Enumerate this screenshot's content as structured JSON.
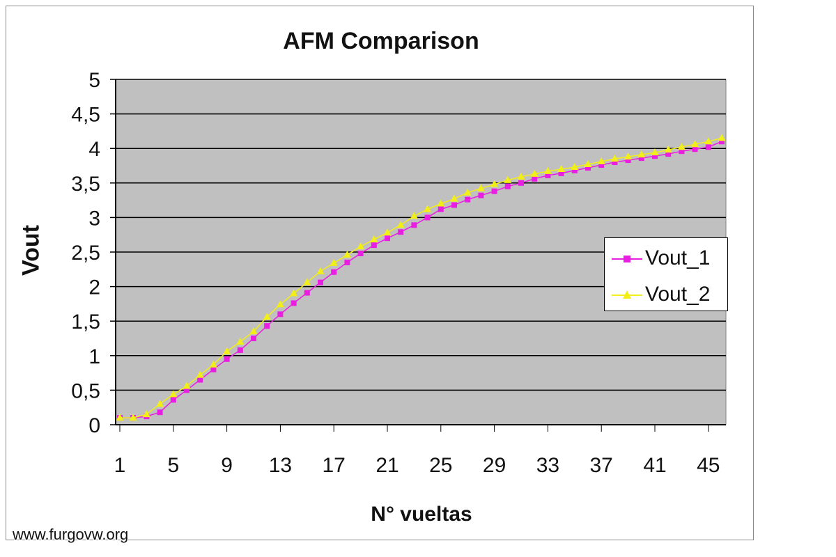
{
  "chart_data": {
    "type": "line",
    "title": "AFM Comparison",
    "xlabel": "N° vueltas",
    "ylabel": "Vout",
    "ylim": [
      0,
      5
    ],
    "y_ticks": [
      "0",
      "0,5",
      "1",
      "1,5",
      "2",
      "2,5",
      "3",
      "3,5",
      "4",
      "4,5",
      "5"
    ],
    "x_tick_labels": [
      "1",
      "5",
      "9",
      "13",
      "17",
      "21",
      "25",
      "29",
      "33",
      "37",
      "41",
      "45"
    ],
    "x_tick_values": [
      1,
      5,
      9,
      13,
      17,
      21,
      25,
      29,
      33,
      37,
      41,
      45
    ],
    "x_range": [
      1,
      46
    ],
    "grid": true,
    "legend_position": "right",
    "series": [
      {
        "name": "Vout_1",
        "color": "#e81ee0",
        "marker": "square",
        "x": [
          1,
          2,
          3,
          4,
          5,
          6,
          7,
          8,
          9,
          10,
          11,
          12,
          13,
          14,
          15,
          16,
          17,
          18,
          19,
          20,
          21,
          22,
          23,
          24,
          25,
          26,
          27,
          28,
          29,
          30,
          31,
          32,
          33,
          34,
          35,
          36,
          37,
          38,
          39,
          40,
          41,
          42,
          43,
          44,
          45,
          46
        ],
        "values": [
          0.1,
          0.1,
          0.12,
          0.18,
          0.36,
          0.5,
          0.65,
          0.8,
          0.95,
          1.08,
          1.25,
          1.43,
          1.6,
          1.76,
          1.91,
          2.06,
          2.21,
          2.35,
          2.48,
          2.6,
          2.7,
          2.79,
          2.89,
          3.0,
          3.12,
          3.18,
          3.26,
          3.32,
          3.38,
          3.45,
          3.5,
          3.56,
          3.61,
          3.64,
          3.68,
          3.72,
          3.76,
          3.8,
          3.83,
          3.86,
          3.89,
          3.92,
          3.96,
          3.99,
          4.02,
          4.1
        ]
      },
      {
        "name": "Vout_2",
        "color": "#f2ee18",
        "marker": "triangle",
        "x": [
          1,
          2,
          3,
          4,
          5,
          6,
          7,
          8,
          9,
          10,
          11,
          12,
          13,
          14,
          15,
          16,
          17,
          18,
          19,
          20,
          21,
          22,
          23,
          24,
          25,
          26,
          27,
          28,
          29,
          30,
          31,
          32,
          33,
          34,
          35,
          36,
          37,
          38,
          39,
          40,
          41,
          42,
          43,
          44,
          45,
          46
        ],
        "values": [
          0.1,
          0.1,
          0.15,
          0.3,
          0.44,
          0.56,
          0.72,
          0.87,
          1.06,
          1.2,
          1.35,
          1.56,
          1.74,
          1.9,
          2.06,
          2.22,
          2.34,
          2.46,
          2.58,
          2.68,
          2.78,
          2.89,
          3.02,
          3.12,
          3.2,
          3.27,
          3.36,
          3.42,
          3.48,
          3.54,
          3.59,
          3.63,
          3.67,
          3.7,
          3.73,
          3.77,
          3.81,
          3.85,
          3.88,
          3.91,
          3.94,
          3.98,
          4.02,
          4.06,
          4.1,
          4.15
        ]
      }
    ]
  },
  "watermark": "www.furgovw.org"
}
